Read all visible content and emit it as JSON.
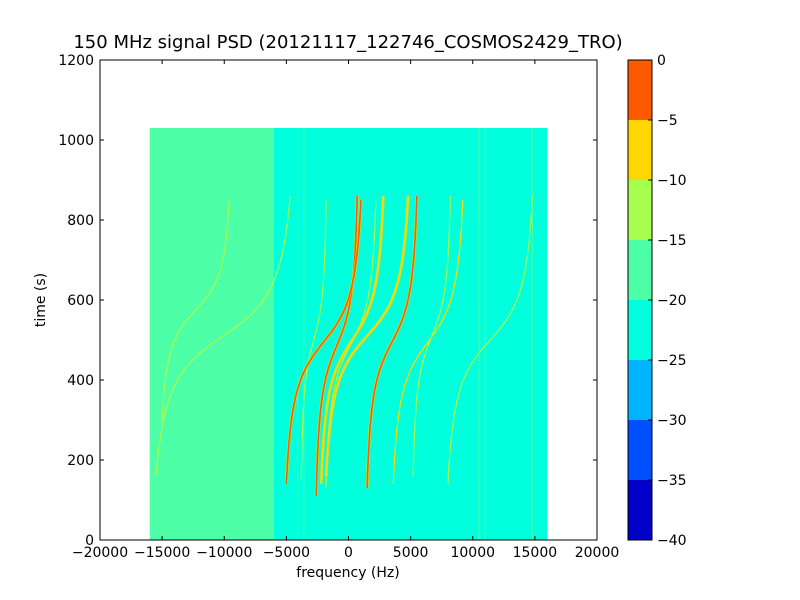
{
  "chart_data": {
    "type": "heatmap",
    "title": "150 MHz signal PSD (20121117_122746_COSMOS2429_TRO)",
    "xlabel": "frequency (Hz)",
    "ylabel": "time (s)",
    "xlim": [
      -20000,
      20000
    ],
    "ylim": [
      0,
      1200
    ],
    "xticks": [
      -20000,
      -15000,
      -10000,
      -5000,
      0,
      5000,
      10000,
      15000,
      20000
    ],
    "xtick_labels": [
      "−20000",
      "−15000",
      "−10000",
      "−5000",
      "0",
      "5000",
      "10000",
      "15000",
      "20000"
    ],
    "yticks": [
      0,
      200,
      400,
      600,
      800,
      1000,
      1200
    ],
    "ytick_labels": [
      "0",
      "200",
      "400",
      "600",
      "800",
      "1000",
      "1200"
    ],
    "data_extent": {
      "x": [
        -16000,
        16000
      ],
      "y": [
        0,
        1030
      ]
    },
    "background_regions": [
      {
        "x": [
          -16000,
          -6000
        ],
        "level": -17
      },
      {
        "x": [
          -6000,
          11000
        ],
        "level": -22
      },
      {
        "x": [
          11000,
          16000
        ],
        "level": -21
      }
    ],
    "vertical_lines": [
      {
        "x": -4100,
        "level": -18
      },
      {
        "x": -3600,
        "level": -18
      },
      {
        "x": 10500,
        "level": -18
      },
      {
        "x": 11000,
        "level": -18
      },
      {
        "x": 14800,
        "level": -18
      }
    ],
    "doppler_tracks": [
      {
        "f_high": -1800,
        "f_low": -3800,
        "t_start": 850,
        "t_end": 150,
        "level": -15
      },
      {
        "f_high": 700,
        "f_low": -2600,
        "t_start": 860,
        "t_end": 110,
        "level": -3
      },
      {
        "f_high": 1000,
        "f_low": -5000,
        "t_start": 850,
        "t_end": 140,
        "level": -5
      },
      {
        "f_high": 2200,
        "f_low": -1800,
        "t_start": 850,
        "t_end": 130,
        "level": -15
      },
      {
        "f_high": 2800,
        "f_low": -2200,
        "t_start": 860,
        "t_end": 140,
        "level": -8
      },
      {
        "f_high": 4800,
        "f_low": -1800,
        "t_start": 860,
        "t_end": 160,
        "level": -8
      },
      {
        "f_high": 5500,
        "f_low": 1500,
        "t_start": 860,
        "t_end": 130,
        "level": -5
      },
      {
        "f_high": 8200,
        "f_low": 5200,
        "t_start": 860,
        "t_end": 160,
        "level": -15
      },
      {
        "f_high": 9200,
        "f_low": 3600,
        "t_start": 850,
        "t_end": 140,
        "level": -10
      },
      {
        "f_high": 14800,
        "f_low": 8000,
        "t_start": 860,
        "t_end": 140,
        "level": -15
      },
      {
        "f_high": -4700,
        "f_low": -15500,
        "t_start": 860,
        "t_end": 160,
        "level": -15
      },
      {
        "f_high": -9600,
        "f_low": -15000,
        "t_start": 850,
        "t_end": 300,
        "level": -15
      }
    ],
    "colorbar": {
      "min": -40,
      "max": 0,
      "ticks": [
        0,
        -5,
        -10,
        -15,
        -20,
        -25,
        -30,
        -35,
        -40
      ],
      "tick_labels": [
        "0",
        "−5",
        "−10",
        "−15",
        "−20",
        "−25",
        "−30",
        "−35",
        "−40"
      ],
      "bands": [
        {
          "from": -40,
          "to": -35,
          "color": "#0000c8"
        },
        {
          "from": -35,
          "to": -30,
          "color": "#0050ff"
        },
        {
          "from": -30,
          "to": -25,
          "color": "#00b4ff"
        },
        {
          "from": -25,
          "to": -20,
          "color": "#00ffdc"
        },
        {
          "from": -20,
          "to": -15,
          "color": "#4dffa6"
        },
        {
          "from": -15,
          "to": -10,
          "color": "#a6ff4d"
        },
        {
          "from": -10,
          "to": -5,
          "color": "#ffd700"
        },
        {
          "from": -5,
          "to": 0,
          "color": "#ff5a00"
        }
      ],
      "top_color": "#c80000"
    }
  }
}
